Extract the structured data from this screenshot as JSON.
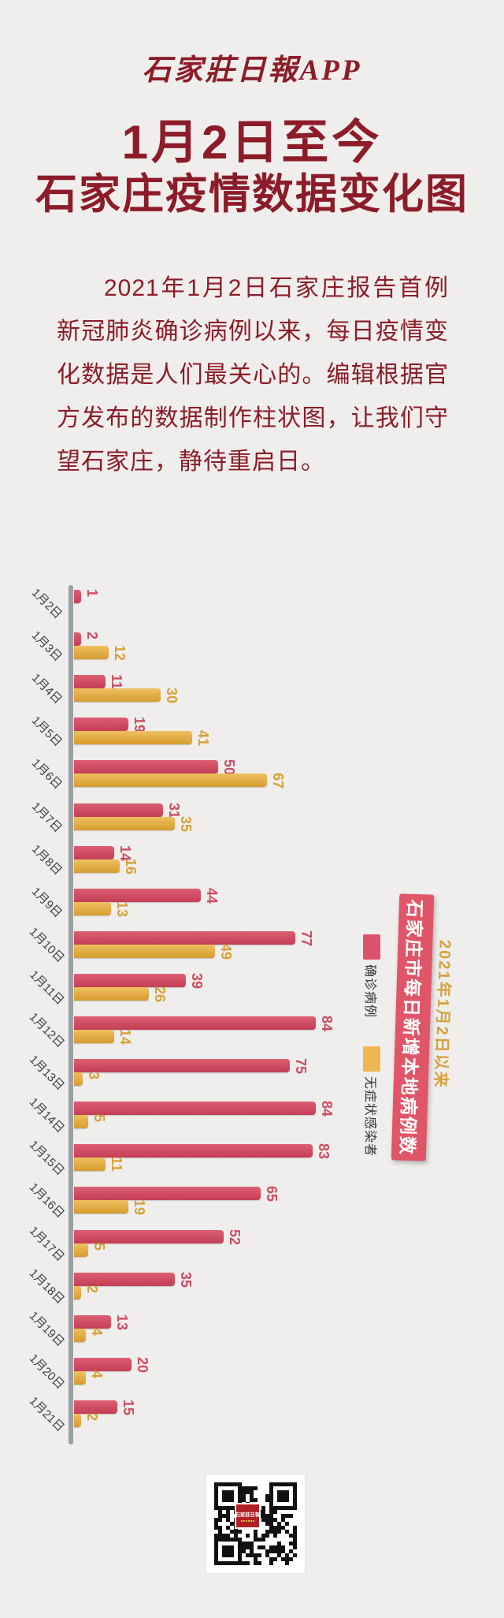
{
  "page": {
    "background": "#efeeec",
    "accent_maroon": "#8c1c28"
  },
  "header": {
    "logo": "石家莊日報APP",
    "title_line1": "1月2日至今",
    "title_line2": "石家庄疫情数据变化图"
  },
  "intro": {
    "text": "2021年1月2日石家庄报告首例新冠肺炎确诊病例以来，每日疫情变化数据是人们最关心的。编辑根据官方发布的数据制作柱状图，让我们守望石家庄，静待重启日。"
  },
  "chart_data": {
    "type": "bar",
    "orientation": "horizontal",
    "title": "石家庄市每日新增本地病例数",
    "subtitle": "2021年1月2日以来",
    "categories": [
      "1月2日",
      "1月3日",
      "1月4日",
      "1月5日",
      "1月6日",
      "1月7日",
      "1月8日",
      "1月9日",
      "1月10日",
      "1月11日",
      "1月12日",
      "1月13日",
      "1月14日",
      "1月15日",
      "1月16日",
      "1月17日",
      "1月18日",
      "1月19日",
      "1月20日",
      "1月21日"
    ],
    "series": [
      {
        "name": "确诊病例",
        "color": "#cf4a60",
        "values": [
          1,
          2,
          11,
          19,
          50,
          31,
          14,
          44,
          77,
          39,
          84,
          75,
          84,
          83,
          65,
          52,
          35,
          13,
          20,
          15
        ]
      },
      {
        "name": "无症状感染者",
        "color": "#e2a83d",
        "values": [
          0,
          12,
          30,
          41,
          67,
          35,
          16,
          13,
          49,
          26,
          14,
          3,
          5,
          11,
          19,
          5,
          2,
          4,
          4,
          2
        ]
      }
    ],
    "value_labels": true,
    "legend_position": "right",
    "axis_color": "#9aa0a4",
    "xlim": [
      0,
      90
    ]
  },
  "side_banner": {
    "label": "石家庄市每日新增本地病例数",
    "sub_label": "2021年1月2日以来",
    "bg": "#e05568",
    "sub_color": "#d7a13b"
  },
  "qr": {
    "center_label": "石家莊日報"
  }
}
